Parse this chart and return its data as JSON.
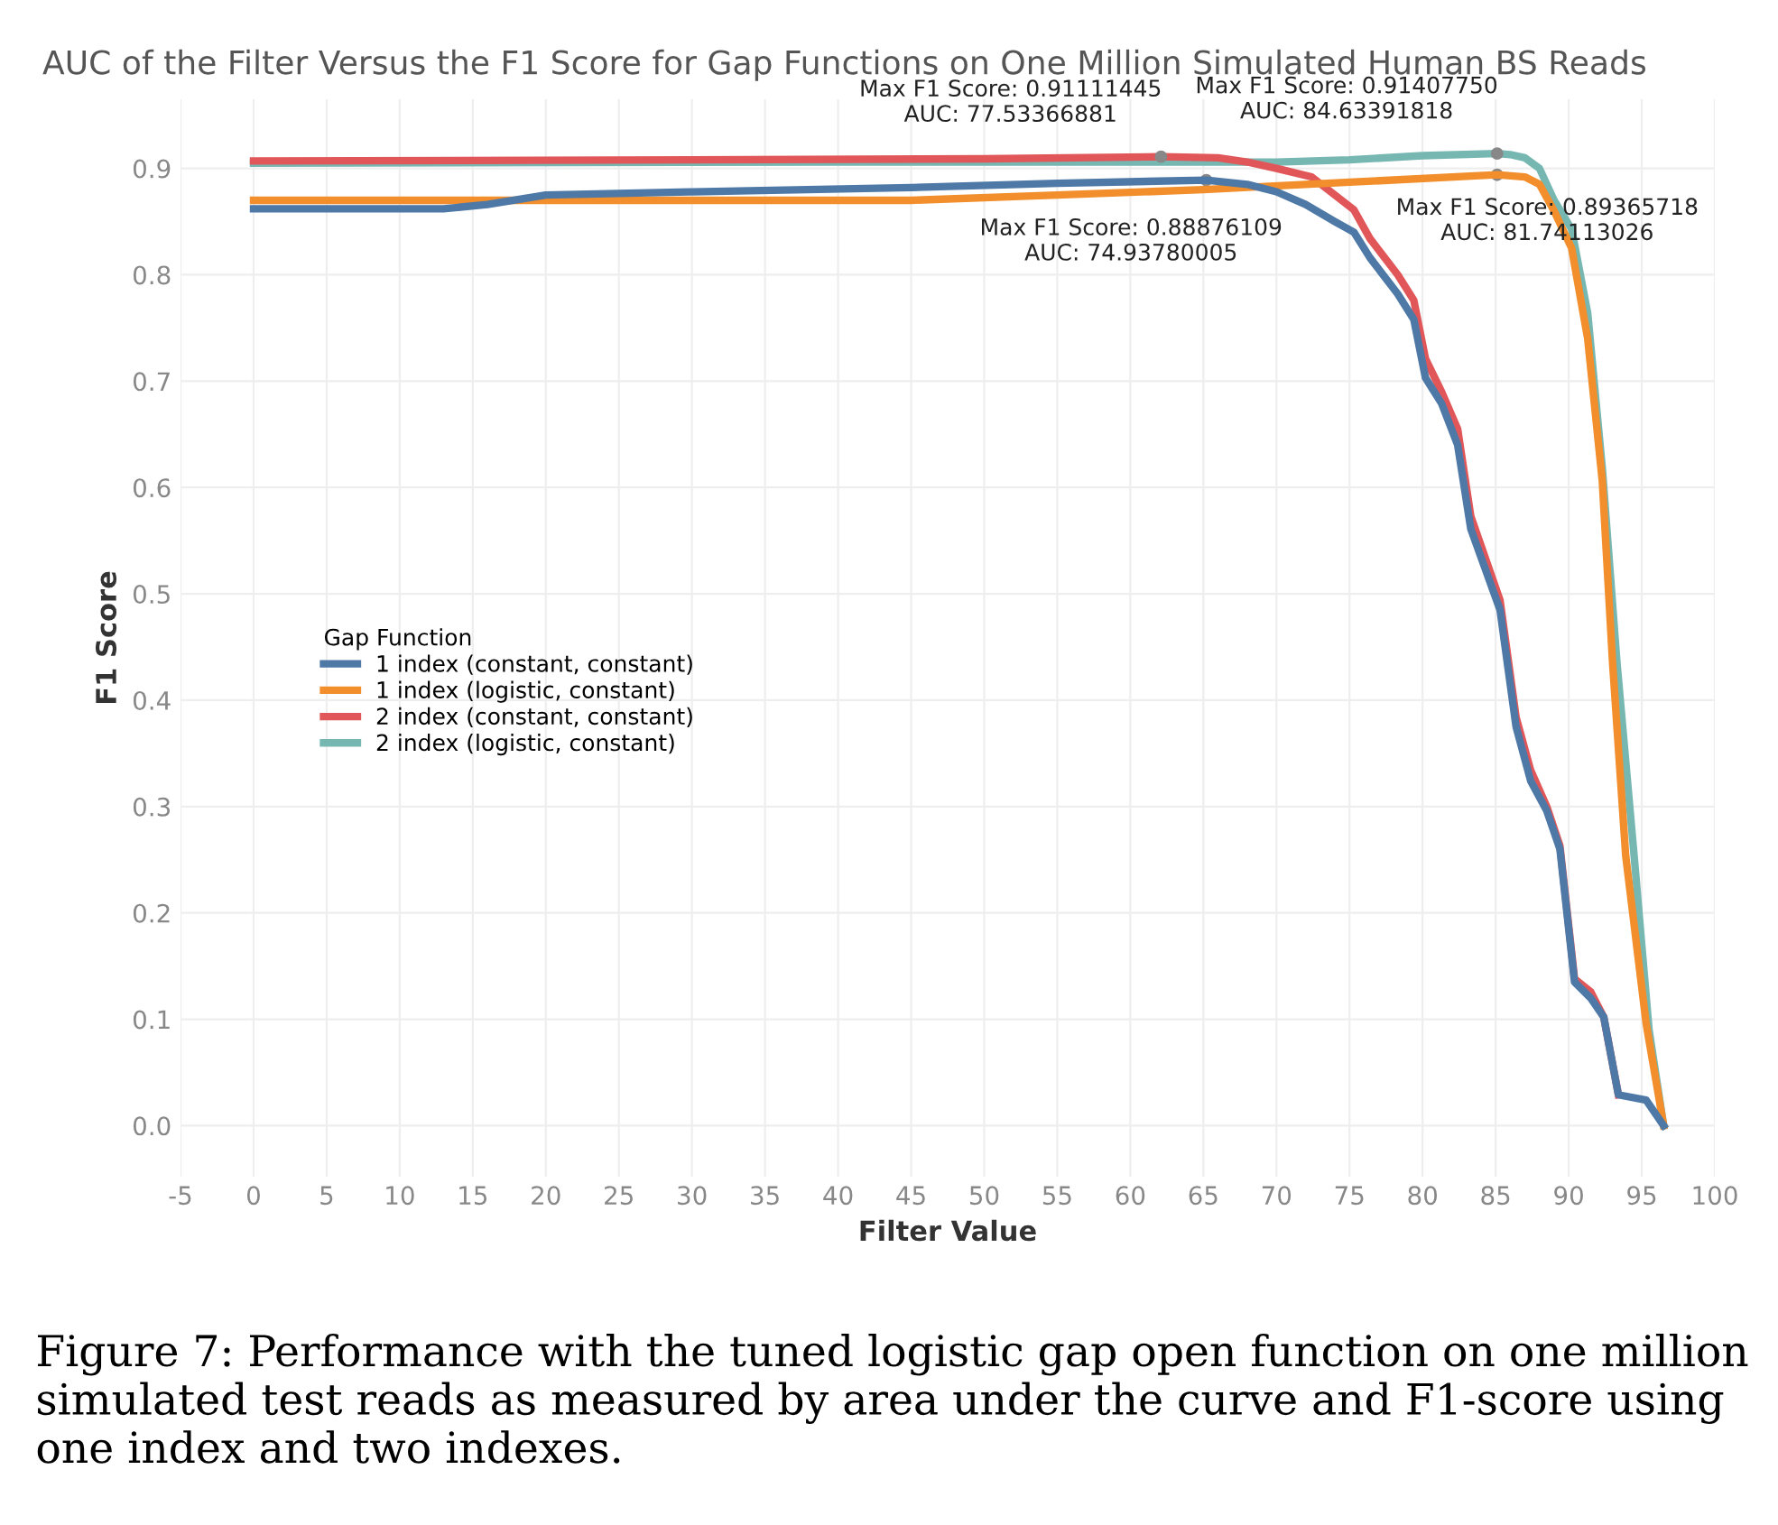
{
  "chart_data": {
    "type": "line",
    "title": "AUC of the Filter Versus the F1 Score for Gap Functions on One Million Simulated Human BS Reads",
    "xlabel": "Filter Value",
    "ylabel": "F1 Score",
    "legend_title": "Gap Function",
    "xlim": [
      -5,
      100
    ],
    "xticks": [
      -5,
      0,
      5,
      10,
      15,
      20,
      25,
      30,
      35,
      40,
      45,
      50,
      55,
      60,
      65,
      70,
      75,
      80,
      85,
      90,
      95,
      100
    ],
    "ylim": [
      -0.048,
      0.965
    ],
    "yticks": [
      {
        "value": 0,
        "label": "0.0"
      },
      0.1,
      0.2,
      0.3,
      0.4,
      0.5,
      0.6,
      0.7,
      0.8,
      0.9
    ],
    "grid": true,
    "legend": "left",
    "marker": "none",
    "line_style": "solid",
    "series": [
      {
        "name": "1 index (constant, constant)",
        "color": "#4e79a7",
        "x": [
          0,
          13,
          16,
          20,
          30,
          45,
          55,
          65.2,
          68,
          70,
          72,
          74,
          75.3,
          76.4,
          78.3,
          79.4,
          80.2,
          81.3,
          82.4,
          83.3,
          85.3,
          86.4,
          87.4,
          88.5,
          89.4,
          90.4,
          91.5,
          92.4,
          93.4,
          95.3,
          96.5
        ],
        "values": [
          0.862,
          0.862,
          0.866,
          0.875,
          0.878,
          0.882,
          0.886,
          0.889,
          0.885,
          0.878,
          0.866,
          0.85,
          0.84,
          0.816,
          0.782,
          0.758,
          0.703,
          0.679,
          0.64,
          0.561,
          0.485,
          0.375,
          0.324,
          0.296,
          0.26,
          0.135,
          0.12,
          0.102,
          0.029,
          0.024,
          0
        ]
      },
      {
        "name": "1 index (logistic, constant)",
        "color": "#f28e2b",
        "x": [
          0,
          45,
          55,
          65,
          75,
          85.1,
          87,
          88,
          89,
          90.2,
          91.3,
          92.3,
          93.0,
          93.9,
          95.3,
          96.5
        ],
        "values": [
          0.87,
          0.87,
          0.875,
          0.88,
          0.887,
          0.894,
          0.892,
          0.885,
          0.86,
          0.825,
          0.74,
          0.606,
          0.436,
          0.254,
          0.096,
          0
        ]
      },
      {
        "name": "2 index (constant, constant)",
        "color": "#e15759",
        "x": [
          0,
          30,
          50,
          62.1,
          66,
          68,
          70,
          72.4,
          75.3,
          76.4,
          78.3,
          79.4,
          80.2,
          81.3,
          82.4,
          83.3,
          85.3,
          86.4,
          87.4,
          88.5,
          89.4,
          90.4,
          91.5,
          92.4,
          93.4
        ],
        "values": [
          0.907,
          0.908,
          0.909,
          0.911,
          0.91,
          0.906,
          0.9,
          0.892,
          0.861,
          0.834,
          0.8,
          0.776,
          0.721,
          0.69,
          0.655,
          0.573,
          0.494,
          0.384,
          0.334,
          0.3,
          0.263,
          0.138,
          0.126,
          0.102,
          0.029
        ]
      },
      {
        "name": "2 index (logistic, constant)",
        "color": "#76b7b2",
        "x": [
          0,
          40,
          70,
          75,
          80,
          85.1,
          86,
          87,
          88,
          89,
          90.2,
          91.3,
          92.3,
          93.3,
          94.5,
          95.5,
          96.5
        ],
        "values": [
          0.905,
          0.906,
          0.906,
          0.908,
          0.912,
          0.914,
          0.913,
          0.91,
          0.9,
          0.87,
          0.843,
          0.764,
          0.618,
          0.436,
          0.25,
          0.09,
          0
        ]
      }
    ],
    "annotations": [
      {
        "text": "Max F1 Score: 0.91111445\nAUC: 77.53366881",
        "x": 62.1,
        "y": 0.911
      },
      {
        "text": "Max F1 Score: 0.91407750\nAUC: 84.63391818",
        "x": 85.1,
        "y": 0.914
      },
      {
        "text": "Max F1 Score: 0.88876109\nAUC: 74.93780005",
        "x": 65.2,
        "y": 0.889
      },
      {
        "text": "Max F1 Score: 0.89365718\nAUC: 81.74113026",
        "x": 85.1,
        "y": 0.894
      },
      "Figure 7: Performance with the tuned logistic gap open function on one million simulated test reads as measured by area under the curve and F1-score using one index and two indexes."
    ]
  }
}
